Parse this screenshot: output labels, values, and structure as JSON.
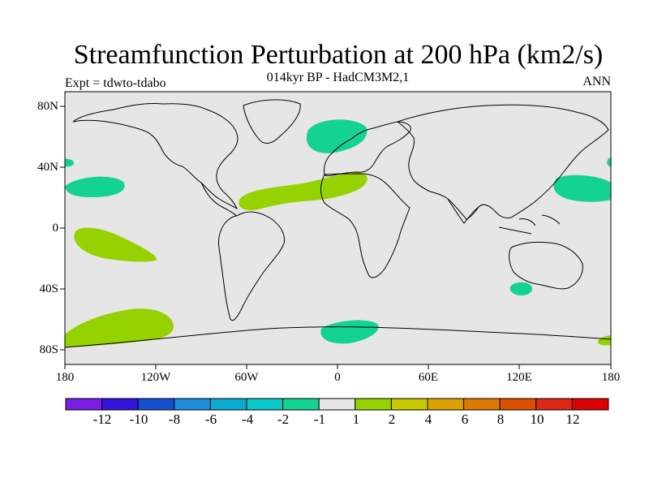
{
  "title": "Streamfunction Perturbation at 200 hPa (km2/s)",
  "subtitle": "014kyr BP - HadCM3M2,1",
  "experiment": "Expt = tdwto-tdabo",
  "season": "ANN",
  "latitude_labels": [
    "80N",
    "40N",
    "0",
    "40S",
    "80S"
  ],
  "longitude_labels": [
    "180",
    "120W",
    "60W",
    "0",
    "60E",
    "120E",
    "180"
  ],
  "colorbar": {
    "labels": [
      "-12",
      "-10",
      "-8",
      "-6",
      "-4",
      "-2",
      "-1",
      "1",
      "2",
      "4",
      "6",
      "8",
      "10",
      "12"
    ],
    "colors": [
      "#7a1ee6",
      "#3214dc",
      "#1450d2",
      "#1e8cdc",
      "#0aaad2",
      "#0ac8c8",
      "#14d291",
      "#e6e6e6",
      "#96d200",
      "#c8c800",
      "#dca000",
      "#dc7800",
      "#dc5000",
      "#dc2814",
      "#dc0000"
    ]
  },
  "colors": {
    "background_field": "#e6e6e6",
    "negative_anomaly": "#14d291",
    "positive_anomaly": "#96d200",
    "coastline": "#000000"
  }
}
